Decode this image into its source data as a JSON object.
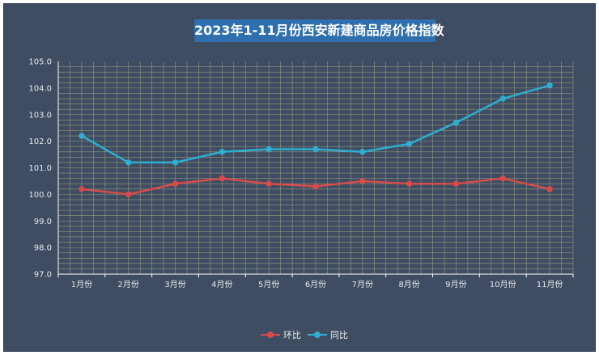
{
  "chart_data": {
    "type": "line",
    "title": "2023年1-11月份西安新建商品房价格指数",
    "categories": [
      "1月份",
      "2月份",
      "3月份",
      "4月份",
      "5月份",
      "6月份",
      "7月份",
      "8月份",
      "9月份",
      "10月份",
      "11月份"
    ],
    "series": [
      {
        "name": "环比",
        "color": "#d94b4b",
        "values": [
          100.2,
          100.0,
          100.4,
          100.6,
          100.4,
          100.3,
          100.5,
          100.4,
          100.4,
          100.6,
          100.2
        ]
      },
      {
        "name": "同比",
        "color": "#2eaed0",
        "values": [
          102.2,
          101.2,
          101.2,
          101.6,
          101.7,
          101.7,
          101.6,
          101.9,
          102.7,
          103.6,
          104.1
        ]
      }
    ],
    "ylim": [
      97.0,
      105.0
    ],
    "yticks": [
      "97.0",
      "98.0",
      "99.0",
      "100.0",
      "101.0",
      "102.0",
      "103.0",
      "104.0",
      "105.0"
    ],
    "grid": true,
    "legend_position": "bottom-center"
  },
  "colors": {
    "background": "#3e4d62",
    "title_background": "#2f6fad",
    "grid": "#b3ad88",
    "axis": "#ffffff"
  }
}
